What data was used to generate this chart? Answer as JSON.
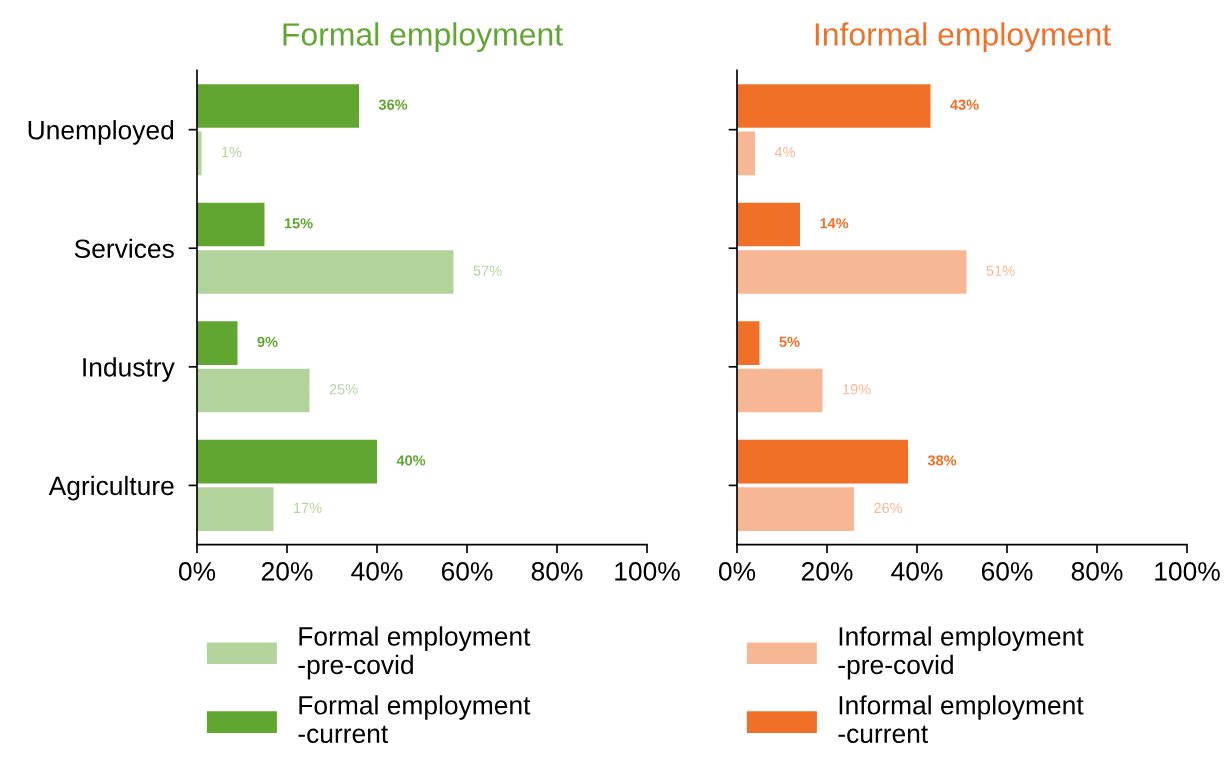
{
  "chart_data": [
    {
      "type": "bar",
      "orientation": "horizontal",
      "title": "Formal employment",
      "categories": [
        "Unemployed",
        "Services",
        "Industry",
        "Agriculture"
      ],
      "xlim": [
        0,
        100
      ],
      "xticks": [
        {
          "value": 0,
          "label": "0%"
        },
        {
          "value": 20,
          "label": "20%"
        },
        {
          "value": 40,
          "label": "40%"
        },
        {
          "value": 60,
          "label": "60%"
        },
        {
          "value": 80,
          "label": "80%"
        },
        {
          "value": 100,
          "label": "100%"
        }
      ],
      "legend": "bottom",
      "grid": false,
      "series": [
        {
          "name": "Formal employment\n-pre-covid",
          "color": "#b2d49c",
          "values": [
            1,
            57,
            25,
            17
          ],
          "value_labels": [
            "1%",
            "57%",
            "25%",
            "17%"
          ]
        },
        {
          "name": "Formal employment\n-current",
          "color": "#62a632",
          "values": [
            36,
            15,
            9,
            40
          ],
          "value_labels": [
            "36%",
            "15%",
            "9%",
            "40%"
          ]
        }
      ]
    },
    {
      "type": "bar",
      "orientation": "horizontal",
      "title": "Informal employment",
      "categories": [
        null,
        null,
        null,
        null
      ],
      "xlim": [
        0,
        100
      ],
      "xticks": [
        {
          "value": 0,
          "label": "0%"
        },
        {
          "value": 20,
          "label": "20%"
        },
        {
          "value": 40,
          "label": "40%"
        },
        {
          "value": 60,
          "label": "60%"
        },
        {
          "value": 80,
          "label": "80%"
        },
        {
          "value": 100,
          "label": "100%"
        }
      ],
      "legend": "bottom",
      "grid": false,
      "series": [
        {
          "name": "Informal employment\n-pre-covid",
          "color": "#f7b795",
          "values": [
            4,
            51,
            19,
            26
          ],
          "value_labels": [
            "4%",
            "51%",
            "19%",
            "26%"
          ]
        },
        {
          "name": "Informal employment\n-current",
          "color": "#f07028",
          "values": [
            43,
            14,
            5,
            38
          ],
          "value_labels": [
            "43%",
            "14%",
            "5%",
            "38%"
          ]
        }
      ]
    }
  ]
}
